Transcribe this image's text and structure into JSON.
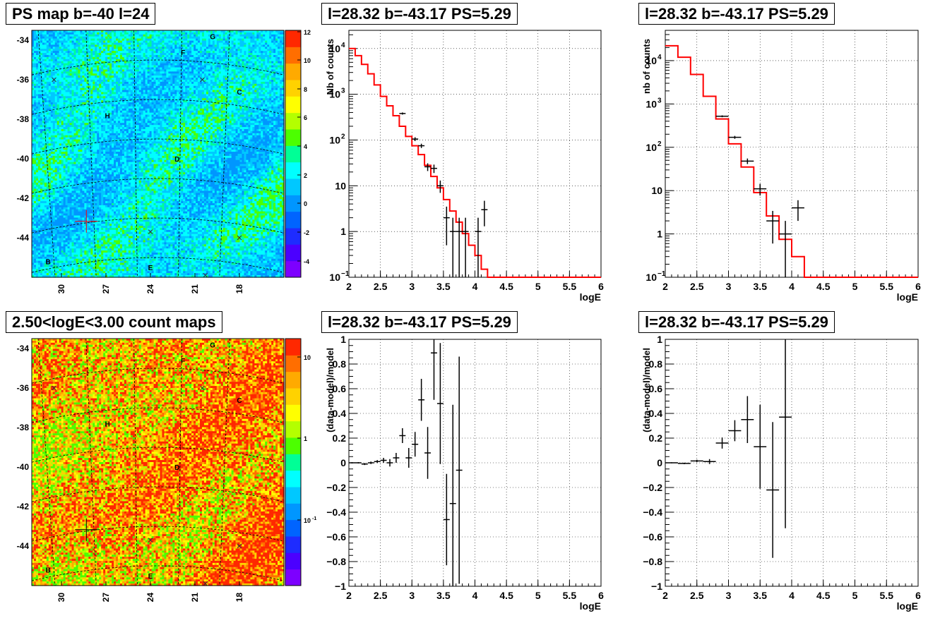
{
  "colors": {
    "map_palette": [
      "#7d00ff",
      "#4b00ff",
      "#1e2cff",
      "#0064ff",
      "#0096ff",
      "#00c8ff",
      "#00ffff",
      "#00ff96",
      "#4cff00",
      "#b4ff00",
      "#ffff00",
      "#ffd200",
      "#ffaa00",
      "#ff6e00",
      "#ff2800"
    ],
    "model_line": "#ff0000",
    "data_points": "#000000",
    "grid": "#000000"
  },
  "panels": {
    "map_ps": {
      "title": "PS map b=-40 l=24",
      "yticks": [
        "-34",
        "-36",
        "-38",
        "-40",
        "-42",
        "-44"
      ],
      "xticks": [
        "30",
        "27",
        "24",
        "21",
        "18"
      ],
      "colorbar_ticks": [
        "12",
        "10",
        "8",
        "6",
        "4",
        "2",
        "0",
        "-2",
        "-4"
      ],
      "sources": [
        "G",
        "F",
        "C",
        "H",
        "D",
        "B",
        "E"
      ]
    },
    "map_counts": {
      "title": "2.50<logE<3.00 count maps",
      "yticks": [
        "-34",
        "-36",
        "-38",
        "-40",
        "-42",
        "-44"
      ],
      "xticks": [
        "30",
        "27",
        "24",
        "21",
        "18"
      ],
      "colorbar_ticks": [
        "10",
        "1",
        "10-1"
      ],
      "sources": [
        "G",
        "F",
        "C",
        "H",
        "D",
        "B",
        "E"
      ]
    },
    "spec1": {
      "title": "l=28.32 b=-43.17 PS=5.29",
      "ylabel": "Nb of counts",
      "xlabel": "logE",
      "yticks": [
        "10⁴",
        "10³",
        "10²",
        "10",
        "1",
        "10⁻¹"
      ],
      "xticks": [
        "2",
        "2.5",
        "3",
        "3.5",
        "4",
        "4.5",
        "5",
        "5.5",
        "6"
      ]
    },
    "spec2": {
      "title": "l=28.32 b=-43.17 PS=5.29",
      "ylabel": "nb of counts",
      "xlabel": "logE",
      "yticks": [
        "10⁴",
        "10³",
        "10²",
        "10",
        "1",
        "10⁻¹"
      ],
      "xticks": [
        "2",
        "2.5",
        "3",
        "3.5",
        "4",
        "4.5",
        "5",
        "5.5",
        "6"
      ]
    },
    "res1": {
      "title": "l=28.32 b=-43.17 PS=5.29",
      "ylabel": "(data-model)/model",
      "xlabel": "logE",
      "yticks": [
        "1",
        "0.8",
        "0.6",
        "0.4",
        "0.2",
        "0",
        "−0.2",
        "−0.4",
        "−0.6",
        "−0.8",
        "−1"
      ],
      "xticks": [
        "2",
        "2.5",
        "3",
        "3.5",
        "4",
        "4.5",
        "5",
        "5.5",
        "6"
      ]
    },
    "res2": {
      "title": "l=28.32 b=-43.17 PS=5.29",
      "ylabel": "(data-model)/model",
      "xlabel": "logE",
      "yticks": [
        "1",
        "0.8",
        "0.6",
        "0.4",
        "0.2",
        "0",
        "−0.2",
        "−0.4",
        "−0.6",
        "−0.8",
        "−1"
      ],
      "xticks": [
        "2",
        "2.5",
        "3",
        "3.5",
        "4",
        "4.5",
        "5",
        "5.5",
        "6"
      ]
    }
  },
  "chart_data": [
    {
      "type": "heatmap",
      "title": "PS map b=-40 l=24",
      "xlim": [
        32,
        15
      ],
      "ylim": [
        -46,
        -33.5
      ],
      "zlim": [
        -5,
        12
      ],
      "sources": [
        {
          "label": "G",
          "x": 19.8,
          "y": -33.8
        },
        {
          "label": "F",
          "x": 21.8,
          "y": -34.6
        },
        {
          "label": "C",
          "x": 18.0,
          "y": -36.6
        },
        {
          "label": "H",
          "x": 26.9,
          "y": -37.8
        },
        {
          "label": "D",
          "x": 22.2,
          "y": -40.0
        },
        {
          "label": "B",
          "x": 30.9,
          "y": -45.2
        },
        {
          "label": "E",
          "x": 24.0,
          "y": -45.5
        }
      ],
      "cross": {
        "l": 28.32,
        "b": -43.17
      }
    },
    {
      "type": "heatmap",
      "title": "2.50<logE<3.00 count maps",
      "xlim": [
        32,
        15
      ],
      "ylim": [
        -46,
        -33.5
      ],
      "zscale": "log",
      "zlim": [
        0.02,
        20
      ]
    },
    {
      "type": "line",
      "title": "l=28.32 b=-43.17 PS=5.29",
      "xlabel": "logE",
      "ylabel": "Nb of counts",
      "xlim": [
        2,
        6
      ],
      "ylim": [
        0.1,
        25000
      ],
      "yscale": "log",
      "model_step": {
        "edges": [
          2,
          2.1,
          2.2,
          2.3,
          2.4,
          2.5,
          2.6,
          2.7,
          2.8,
          2.9,
          3.0,
          3.1,
          3.2,
          3.3,
          3.4,
          3.5,
          3.6,
          3.7,
          3.8,
          3.9,
          4.0,
          4.1,
          4.2,
          6.0
        ],
        "values": [
          10000,
          7000,
          4500,
          2800,
          1600,
          900,
          560,
          340,
          200,
          120,
          75,
          48,
          28,
          16,
          9,
          5,
          2.8,
          1.6,
          0.9,
          0.5,
          0.3,
          0.15,
          0.1
        ]
      },
      "data": [
        {
          "x": 2.85,
          "y": 380,
          "dy_lo": 20,
          "dy_hi": 20,
          "dx": 0.05
        },
        {
          "x": 3.05,
          "y": 105,
          "dy_lo": 10,
          "dy_hi": 10,
          "dx": 0.05
        },
        {
          "x": 3.15,
          "y": 75,
          "dy_lo": 8,
          "dy_hi": 8,
          "dx": 0.05
        },
        {
          "x": 3.25,
          "y": 26,
          "dy_lo": 5,
          "dy_hi": 5,
          "dx": 0.05
        },
        {
          "x": 3.35,
          "y": 24,
          "dy_lo": 5,
          "dy_hi": 5,
          "dx": 0.05
        },
        {
          "x": 3.45,
          "y": 10,
          "dy_lo": 3,
          "dy_hi": 3,
          "dx": 0.05
        },
        {
          "x": 3.55,
          "y": 2,
          "dy_lo": 1.5,
          "dy_hi": 1.5,
          "dx": 0.05
        },
        {
          "x": 3.65,
          "y": 1,
          "dy_lo": 0.9,
          "dy_hi": 1,
          "dx": 0.05
        },
        {
          "x": 3.75,
          "y": 1,
          "dy_lo": 0.9,
          "dy_hi": 1,
          "dx": 0.05
        },
        {
          "x": 3.85,
          "y": 1,
          "dy_lo": 0.9,
          "dy_hi": 1,
          "dx": 0.05
        },
        {
          "x": 4.05,
          "y": 1,
          "dy_lo": 0.9,
          "dy_hi": 1,
          "dx": 0.05
        },
        {
          "x": 4.15,
          "y": 3,
          "dy_lo": 1.7,
          "dy_hi": 1.7,
          "dx": 0.05
        }
      ]
    },
    {
      "type": "line",
      "title": "l=28.32 b=-43.17 PS=5.29",
      "xlabel": "logE",
      "ylabel": "nb of counts",
      "xlim": [
        2,
        6
      ],
      "ylim": [
        0.1,
        50000
      ],
      "yscale": "log",
      "model_step": {
        "edges": [
          2,
          2.2,
          2.4,
          2.6,
          2.8,
          3.0,
          3.2,
          3.4,
          3.6,
          3.8,
          4.0,
          4.2,
          6.0
        ],
        "values": [
          22000,
          12000,
          4800,
          1500,
          450,
          120,
          35,
          9,
          2.6,
          0.75,
          0.3,
          0.1
        ]
      },
      "data": [
        {
          "x": 2.9,
          "y": 520,
          "dy_lo": 25,
          "dy_hi": 25,
          "dx": 0.1
        },
        {
          "x": 3.1,
          "y": 170,
          "dy_lo": 13,
          "dy_hi": 13,
          "dx": 0.1
        },
        {
          "x": 3.3,
          "y": 48,
          "dy_lo": 7,
          "dy_hi": 7,
          "dx": 0.1
        },
        {
          "x": 3.5,
          "y": 11,
          "dy_lo": 3.3,
          "dy_hi": 3.3,
          "dx": 0.1
        },
        {
          "x": 3.7,
          "y": 2,
          "dy_lo": 1.4,
          "dy_hi": 1.4,
          "dx": 0.1
        },
        {
          "x": 3.9,
          "y": 1,
          "dy_lo": 0.9,
          "dy_hi": 1,
          "dx": 0.1
        },
        {
          "x": 4.1,
          "y": 4,
          "dy_lo": 2,
          "dy_hi": 2,
          "dx": 0.1
        }
      ]
    },
    {
      "type": "scatter",
      "title": "l=28.32 b=-43.17 PS=5.29",
      "xlabel": "logE",
      "ylabel": "(data-model)/model",
      "xlim": [
        2,
        6
      ],
      "ylim": [
        -1,
        1
      ],
      "data": [
        {
          "x": 2.05,
          "y": 0.0,
          "dy": 0.005,
          "dx": 0.05
        },
        {
          "x": 2.15,
          "y": 0.0,
          "dy": 0.005,
          "dx": 0.05
        },
        {
          "x": 2.25,
          "y": -0.01,
          "dy": 0.008,
          "dx": 0.05
        },
        {
          "x": 2.35,
          "y": 0.0,
          "dy": 0.01,
          "dx": 0.05
        },
        {
          "x": 2.45,
          "y": 0.01,
          "dy": 0.012,
          "dx": 0.05
        },
        {
          "x": 2.55,
          "y": 0.02,
          "dy": 0.02,
          "dx": 0.05
        },
        {
          "x": 2.65,
          "y": 0.0,
          "dy": 0.03,
          "dx": 0.05
        },
        {
          "x": 2.75,
          "y": 0.04,
          "dy": 0.04,
          "dx": 0.05
        },
        {
          "x": 2.85,
          "y": 0.22,
          "dy": 0.06,
          "dx": 0.05
        },
        {
          "x": 2.95,
          "y": 0.04,
          "dy": 0.08,
          "dx": 0.05
        },
        {
          "x": 3.05,
          "y": 0.15,
          "dy": 0.1,
          "dx": 0.05
        },
        {
          "x": 3.15,
          "y": 0.51,
          "dy": 0.17,
          "dx": 0.05
        },
        {
          "x": 3.25,
          "y": 0.08,
          "dy": 0.21,
          "dx": 0.05
        },
        {
          "x": 3.35,
          "y": 0.89,
          "dy": 0.38,
          "dx": 0.05
        },
        {
          "x": 3.45,
          "y": 0.48,
          "dy": 0.49,
          "dx": 0.05
        },
        {
          "x": 3.55,
          "y": -0.46,
          "dy": 0.37,
          "dx": 0.05
        },
        {
          "x": 3.65,
          "y": -0.33,
          "dy": 0.8,
          "dx": 0.05
        },
        {
          "x": 3.75,
          "y": -0.06,
          "dy": 0.92,
          "dx": 0.05
        }
      ]
    },
    {
      "type": "scatter",
      "title": "l=28.32 b=-43.17 PS=5.29",
      "xlabel": "logE",
      "ylabel": "(data-model)/model",
      "xlim": [
        2,
        6
      ],
      "ylim": [
        -1,
        1
      ],
      "data": [
        {
          "x": 2.1,
          "y": 0.0,
          "dy": 0.004,
          "dx": 0.1
        },
        {
          "x": 2.3,
          "y": -0.005,
          "dy": 0.006,
          "dx": 0.1
        },
        {
          "x": 2.5,
          "y": 0.015,
          "dy": 0.01,
          "dx": 0.1
        },
        {
          "x": 2.7,
          "y": 0.01,
          "dy": 0.02,
          "dx": 0.1
        },
        {
          "x": 2.9,
          "y": 0.16,
          "dy": 0.045,
          "dx": 0.1
        },
        {
          "x": 3.1,
          "y": 0.26,
          "dy": 0.085,
          "dx": 0.1
        },
        {
          "x": 3.3,
          "y": 0.35,
          "dy": 0.19,
          "dx": 0.1
        },
        {
          "x": 3.5,
          "y": 0.13,
          "dy": 0.34,
          "dx": 0.1
        },
        {
          "x": 3.7,
          "y": -0.22,
          "dy": 0.55,
          "dx": 0.1
        },
        {
          "x": 3.9,
          "y": 0.37,
          "dy": 0.9,
          "dx": 0.1
        }
      ]
    }
  ]
}
